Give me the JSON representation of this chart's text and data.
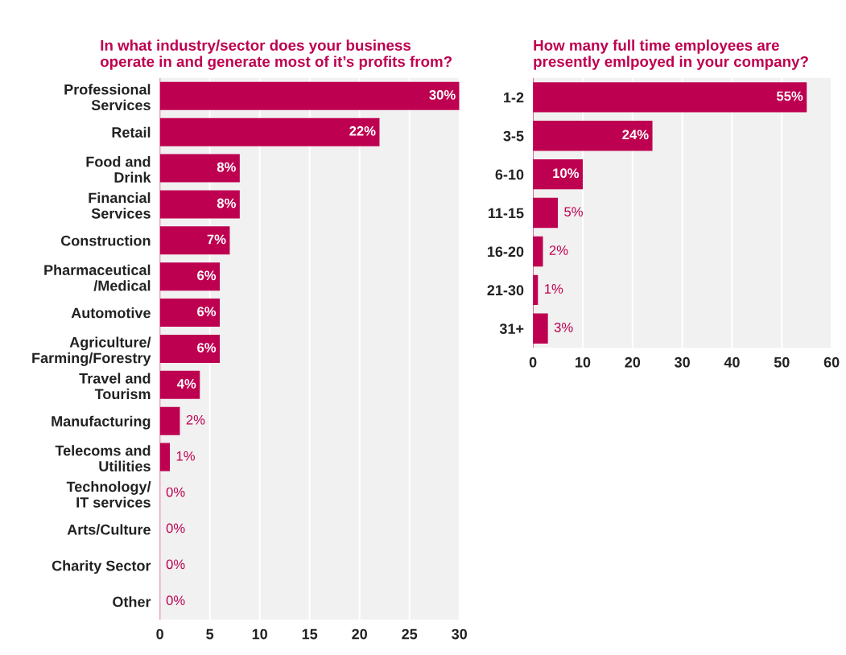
{
  "chart_data": [
    {
      "type": "bar",
      "orientation": "horizontal",
      "title": "In what industry/sector does your business\noperate in and generate most of it’s profits from?",
      "categories": [
        "Professional\nServices",
        "Retail",
        "Food and\nDrink",
        "Financial\nServices",
        "Construction",
        "Pharmaceutical\n/Medical",
        "Automotive",
        "Agriculture/\nFarming/Forestry",
        "Travel and\nTourism",
        "Manufacturing",
        "Telecoms and\nUtilities",
        "Technology/\nIT services",
        "Arts/Culture",
        "Charity Sector",
        "Other"
      ],
      "values": [
        30,
        22,
        8,
        8,
        7,
        6,
        6,
        6,
        4,
        2,
        1,
        0,
        0,
        0,
        0
      ],
      "value_labels": [
        "30%",
        "22%",
        "8%",
        "8%",
        "7%",
        "6%",
        "6%",
        "6%",
        "4%",
        "2%",
        "1%",
        "0%",
        "0%",
        "0%",
        "0%"
      ],
      "color": "#be0050",
      "xlim": [
        0,
        30
      ],
      "xticks": [
        0,
        5,
        10,
        15,
        20,
        25,
        30
      ],
      "grid": "x"
    },
    {
      "type": "bar",
      "orientation": "horizontal",
      "title": "How many full time employees are\npresently emlpoyed in your company?",
      "categories": [
        "1-2",
        "3-5",
        "6-10",
        "11-15",
        "16-20",
        "21-30",
        "31+"
      ],
      "values": [
        55,
        24,
        10,
        5,
        2,
        1,
        3
      ],
      "value_labels": [
        "55%",
        "24%",
        "10%",
        "5%",
        "2%",
        "1%",
        "3%"
      ],
      "color": "#be0050",
      "xlim": [
        0,
        60
      ],
      "xticks": [
        0,
        10,
        20,
        30,
        40,
        50,
        60
      ],
      "grid": "x"
    }
  ]
}
